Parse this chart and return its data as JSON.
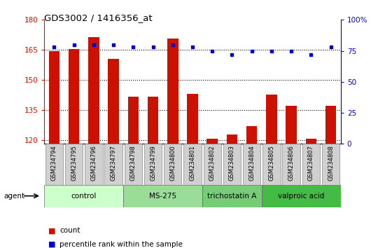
{
  "title": "GDS3002 / 1416356_at",
  "samples": [
    "GSM234794",
    "GSM234795",
    "GSM234796",
    "GSM234797",
    "GSM234798",
    "GSM234799",
    "GSM234800",
    "GSM234801",
    "GSM234802",
    "GSM234803",
    "GSM234804",
    "GSM234805",
    "GSM234806",
    "GSM234807",
    "GSM234808"
  ],
  "counts": [
    164.5,
    165.5,
    171.5,
    160.5,
    141.5,
    141.5,
    170.5,
    143.0,
    120.5,
    122.5,
    127.0,
    142.5,
    137.0,
    120.5,
    137.0
  ],
  "percentiles": [
    78,
    80,
    80,
    80,
    78,
    78,
    80,
    78,
    75,
    72,
    75,
    75,
    75,
    72,
    78
  ],
  "bar_color": "#cc1100",
  "dot_color": "#0000cc",
  "ylim_left": [
    118,
    180
  ],
  "ylim_right": [
    0,
    100
  ],
  "yticks_left": [
    120,
    135,
    150,
    165,
    180
  ],
  "yticks_right": [
    0,
    25,
    50,
    75,
    100
  ],
  "groups": [
    {
      "label": "control",
      "start": 0,
      "end": 4,
      "color": "#ccffcc"
    },
    {
      "label": "MS-275",
      "start": 4,
      "end": 8,
      "color": "#99dd99"
    },
    {
      "label": "trichostatin A",
      "start": 8,
      "end": 11,
      "color": "#77cc77"
    },
    {
      "label": "valproic acid",
      "start": 11,
      "end": 15,
      "color": "#44bb44"
    }
  ],
  "agent_label": "agent",
  "legend_count": "count",
  "legend_pct": "percentile rank within the sample",
  "left_axis_color": "#cc1100",
  "right_axis_color": "#0000cc"
}
